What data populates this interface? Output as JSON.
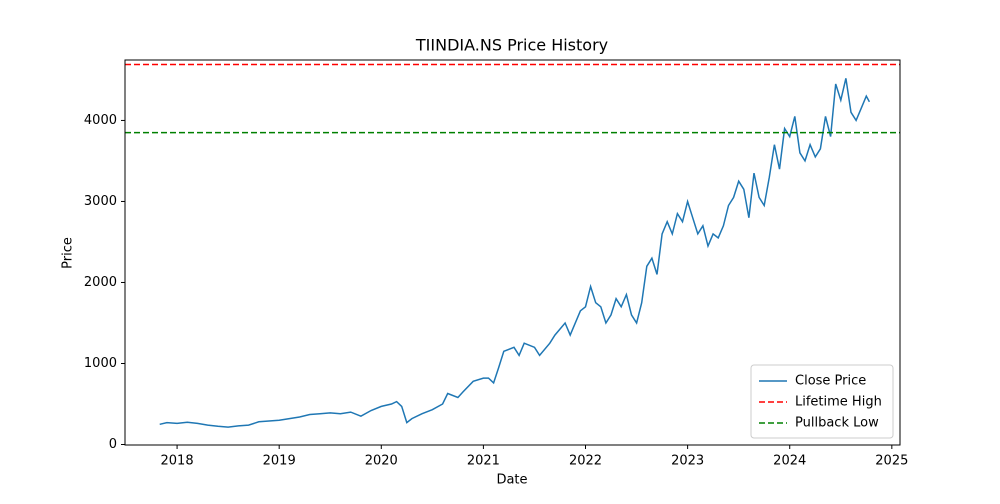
{
  "chart_data": {
    "type": "line",
    "title": "TIINDIA.NS Price History",
    "x_label": "Date",
    "y_label": "Price",
    "x": [
      2017.83,
      2017.9,
      2018.0,
      2018.1,
      2018.2,
      2018.3,
      2018.4,
      2018.5,
      2018.6,
      2018.7,
      2018.8,
      2018.9,
      2019.0,
      2019.1,
      2019.2,
      2019.3,
      2019.4,
      2019.5,
      2019.6,
      2019.7,
      2019.8,
      2019.9,
      2020.0,
      2020.1,
      2020.15,
      2020.2,
      2020.25,
      2020.3,
      2020.4,
      2020.5,
      2020.6,
      2020.65,
      2020.75,
      2020.8,
      2020.9,
      2021.0,
      2021.05,
      2021.1,
      2021.15,
      2021.2,
      2021.3,
      2021.35,
      2021.4,
      2021.5,
      2021.55,
      2021.65,
      2021.7,
      2021.8,
      2021.85,
      2021.95,
      2022.0,
      2022.05,
      2022.1,
      2022.15,
      2022.2,
      2022.25,
      2022.3,
      2022.35,
      2022.4,
      2022.45,
      2022.5,
      2022.55,
      2022.6,
      2022.65,
      2022.7,
      2022.75,
      2022.8,
      2022.85,
      2022.9,
      2022.95,
      2023.0,
      2023.05,
      2023.1,
      2023.15,
      2023.2,
      2023.25,
      2023.3,
      2023.35,
      2023.4,
      2023.45,
      2023.5,
      2023.55,
      2023.6,
      2023.65,
      2023.7,
      2023.75,
      2023.8,
      2023.85,
      2023.9,
      2023.95,
      2024.0,
      2024.05,
      2024.1,
      2024.15,
      2024.2,
      2024.25,
      2024.3,
      2024.35,
      2024.4,
      2024.45,
      2024.5,
      2024.55,
      2024.6,
      2024.65,
      2024.7,
      2024.75,
      2024.78
    ],
    "series": [
      {
        "name": "Close Price",
        "color": "#1f77b4",
        "values": [
          250,
          270,
          260,
          275,
          260,
          240,
          225,
          215,
          230,
          240,
          280,
          290,
          300,
          320,
          340,
          370,
          380,
          390,
          380,
          400,
          350,
          420,
          470,
          500,
          530,
          470,
          270,
          320,
          380,
          430,
          500,
          630,
          580,
          650,
          780,
          820,
          820,
          760,
          950,
          1150,
          1200,
          1100,
          1250,
          1200,
          1100,
          1250,
          1350,
          1500,
          1350,
          1650,
          1700,
          1950,
          1750,
          1700,
          1500,
          1600,
          1800,
          1700,
          1850,
          1600,
          1500,
          1750,
          2200,
          2300,
          2100,
          2600,
          2750,
          2600,
          2850,
          2750,
          3000,
          2800,
          2600,
          2700,
          2450,
          2600,
          2550,
          2700,
          2950,
          3050,
          3250,
          3150,
          2800,
          3350,
          3050,
          2950,
          3300,
          3700,
          3400,
          3900,
          3800,
          4050,
          3600,
          3500,
          3700,
          3550,
          3650,
          4050,
          3800,
          4450,
          4250,
          4520,
          4100,
          4000,
          4150,
          4300,
          4230
        ]
      }
    ],
    "hlines": [
      {
        "name": "Lifetime High",
        "color": "#ff0000",
        "value": 4690
      },
      {
        "name": "Pullback Low",
        "color": "#008000",
        "value": 3850
      }
    ],
    "xlim": [
      2017.49,
      2025.08
    ],
    "xticks": [
      2018,
      2019,
      2020,
      2021,
      2022,
      2023,
      2024,
      2025
    ],
    "ylim": [
      -6,
      4746
    ],
    "yticks": [
      0,
      1000,
      2000,
      3000,
      4000
    ],
    "legend": "lower right"
  }
}
